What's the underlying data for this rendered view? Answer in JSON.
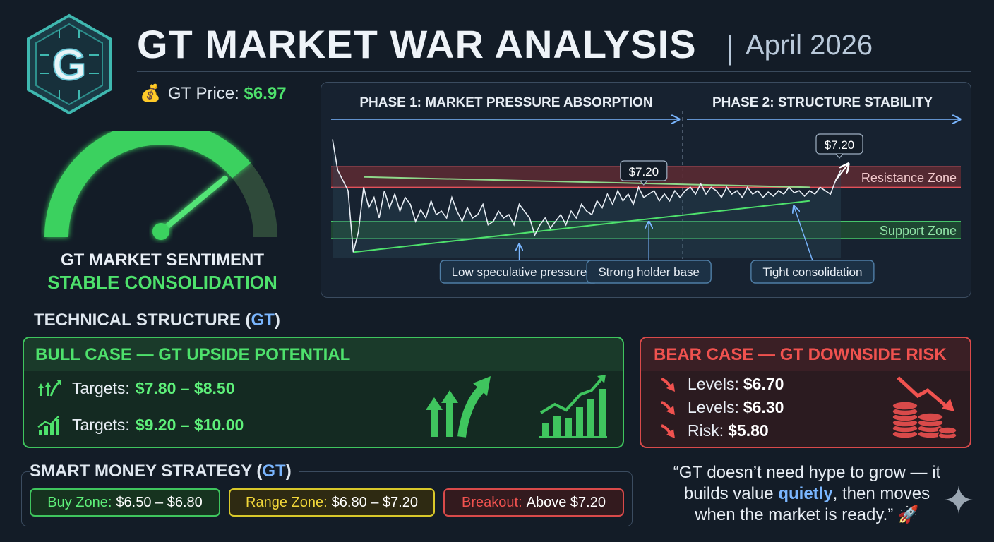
{
  "header": {
    "title": "GT MARKET WAR ANALYSIS",
    "separator": "|",
    "date": "April 2026",
    "logo_letter": "G"
  },
  "price": {
    "label": "GT Price:",
    "value": "$6.97",
    "icon": "money-bag-icon"
  },
  "sentiment": {
    "title": "GT MARKET SENTIMENT",
    "status": "STABLE CONSOLIDATION",
    "level": 0.78
  },
  "chart_data": {
    "type": "line",
    "phases": [
      {
        "label": "PHASE 1: MARKET PRESSURE ABSORPTION"
      },
      {
        "label": "PHASE 2: STRUCTURE STABILITY"
      }
    ],
    "zones": [
      {
        "name": "Resistance Zone",
        "range": [
          7.05,
          7.35
        ]
      },
      {
        "name": "Support Zone",
        "range": [
          6.3,
          6.55
        ]
      }
    ],
    "ylim": [
      6.0,
      7.9
    ],
    "series": [
      {
        "values": [
          7.75,
          7.3,
          7.15,
          7.0,
          6.1,
          6.4,
          7.05,
          6.75,
          6.9,
          6.6,
          7.0,
          6.75,
          6.95,
          6.7,
          6.9,
          6.8,
          6.55,
          6.72,
          6.6,
          6.85,
          6.65,
          6.7,
          6.6,
          6.9,
          6.7,
          6.55,
          6.75,
          6.6,
          6.65,
          6.8,
          6.5,
          6.55,
          6.7,
          6.6,
          6.65,
          6.5,
          6.8,
          6.7,
          6.6,
          6.35,
          6.5,
          6.6,
          6.45,
          6.55,
          6.65,
          6.5,
          6.7,
          6.6,
          6.8,
          6.7,
          6.65,
          6.85,
          6.75,
          6.95,
          6.8,
          7.0,
          6.85,
          6.95,
          6.8,
          7.05,
          6.9,
          6.95,
          7.0,
          6.85,
          6.95,
          6.85,
          7.0,
          6.9,
          7.0,
          7.05,
          6.95,
          7.1,
          6.95,
          7.05,
          7.0,
          6.9,
          7.05,
          6.95,
          7.0,
          6.9,
          7.05,
          6.95,
          7.0,
          6.9,
          6.98,
          6.92,
          7.0,
          6.95,
          7.05,
          6.97,
          7.0,
          6.92,
          7.0,
          6.95,
          7.05,
          7.0,
          6.95,
          7.15,
          7.3
        ]
      }
    ],
    "trendlines": [
      {
        "from": [
          4,
          6.1
        ],
        "to": [
          92,
          6.85
        ]
      },
      {
        "from": [
          6,
          7.2
        ],
        "to": [
          92,
          7.05
        ]
      }
    ],
    "price_labels": [
      {
        "text": "$7.20",
        "index": 60
      },
      {
        "text": "$7.20",
        "index": 98
      }
    ],
    "annotations": [
      {
        "text": "Low speculative pressure",
        "index": 36
      },
      {
        "text": "Strong holder base",
        "index": 61
      },
      {
        "text": "Tight consolidation",
        "index": 89
      }
    ]
  },
  "technical": {
    "title": "TECHNICAL STRUCTURE (",
    "gt": "GT",
    "close": ")"
  },
  "bull": {
    "title": "BULL CASE —  GT UPSIDE POTENTIAL",
    "rows": [
      {
        "label": "Targets:",
        "value": "$7.80 – $8.50"
      },
      {
        "label": "Targets:",
        "value": "$9.20 – $10.00"
      }
    ]
  },
  "bear": {
    "title": "BEAR CASE — GT DOWNSIDE RISK",
    "rows": [
      {
        "label": "Levels:",
        "value": "$6.70"
      },
      {
        "label": "Levels:",
        "value": "$6.30"
      },
      {
        "label": "Risk:",
        "value": "$5.80"
      }
    ]
  },
  "strategy": {
    "title": "SMART MONEY STRATEGY (",
    "gt": "GT",
    "close": ")",
    "buy": {
      "label": "Buy Zone:",
      "value": "$6.50 – $6.80"
    },
    "range": {
      "label": "Range Zone:",
      "value": "$6.80 – $7.20"
    },
    "breakout": {
      "label": "Breakout:",
      "value": "Above $7.20"
    }
  },
  "quote": {
    "line1": "“GT doesn’t need hype to grow — it",
    "line2a": "builds value ",
    "line2b": "quietly",
    "line2c": ", then moves",
    "line3": "when the market is ready.” 🚀"
  },
  "colors": {
    "green": "#4ee16c",
    "red": "#f0524f",
    "yellow": "#f2d73a",
    "blue": "#7ab6ff",
    "background": "#131c27"
  }
}
